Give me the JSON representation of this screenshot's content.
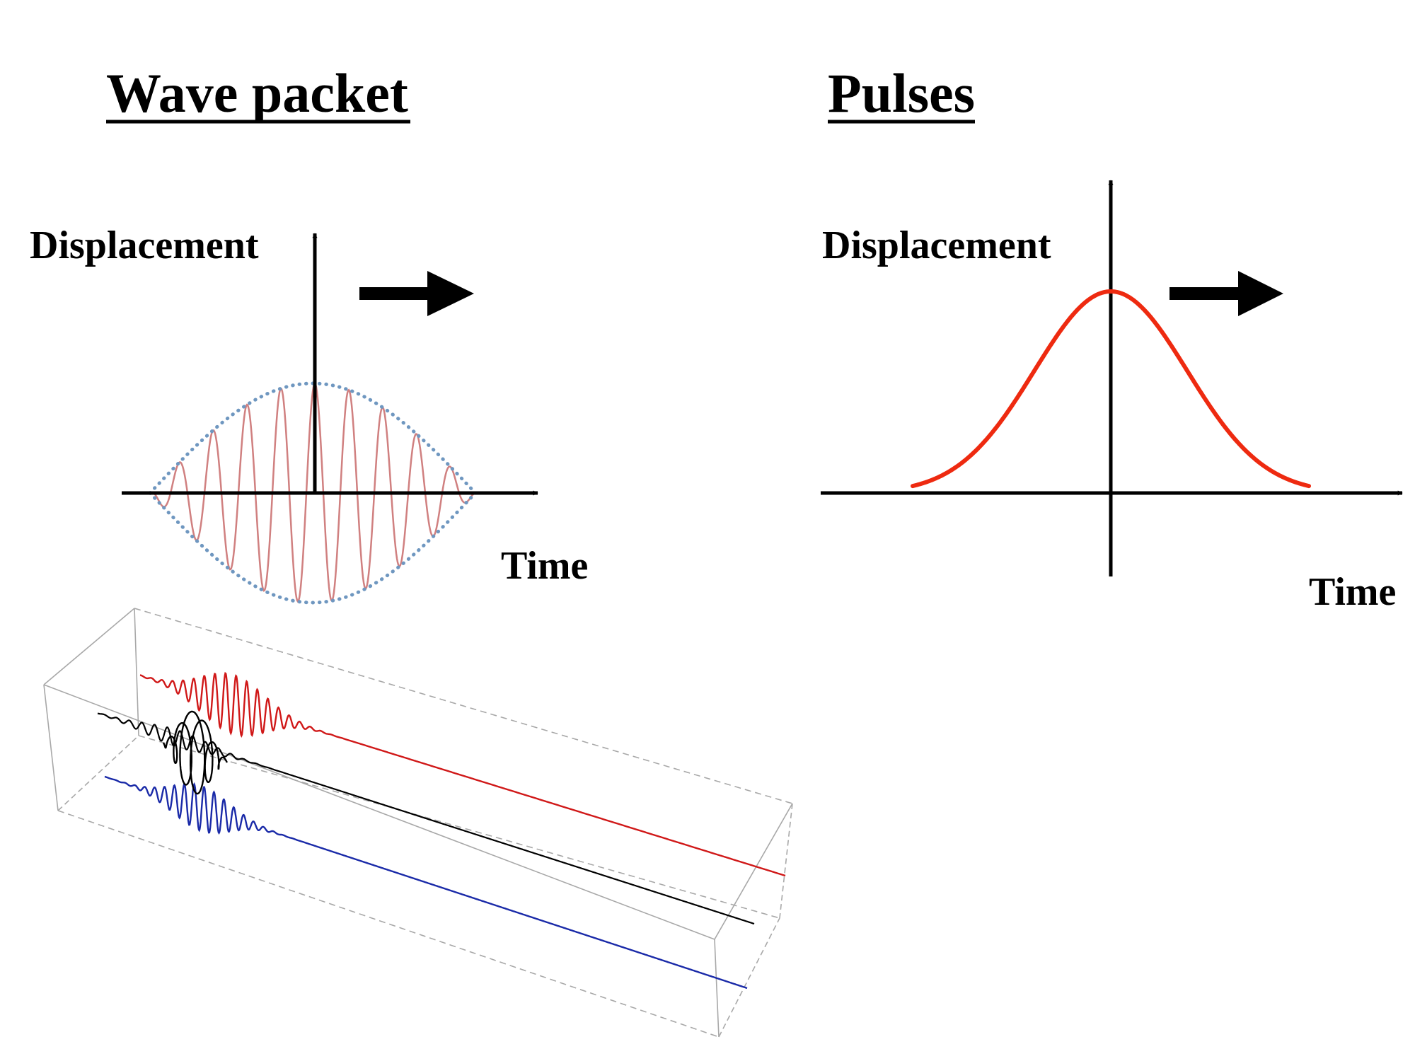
{
  "wave_packet": {
    "title": "Wave packet",
    "y_label": "Displacement",
    "x_label": "Time",
    "colors": {
      "carrier": "#d08080",
      "envelope": "#6f97c0",
      "axis": "#000000"
    }
  },
  "pulses": {
    "title": "Pulses",
    "y_label": "Displacement",
    "x_label": "Time",
    "colors": {
      "pulse": "#ee2a10",
      "axis": "#000000"
    }
  },
  "propagation_3d": {
    "colors": {
      "top": "#d01818",
      "middle": "#000000",
      "bottom": "#1a2aa8",
      "box": "#999999"
    }
  }
}
